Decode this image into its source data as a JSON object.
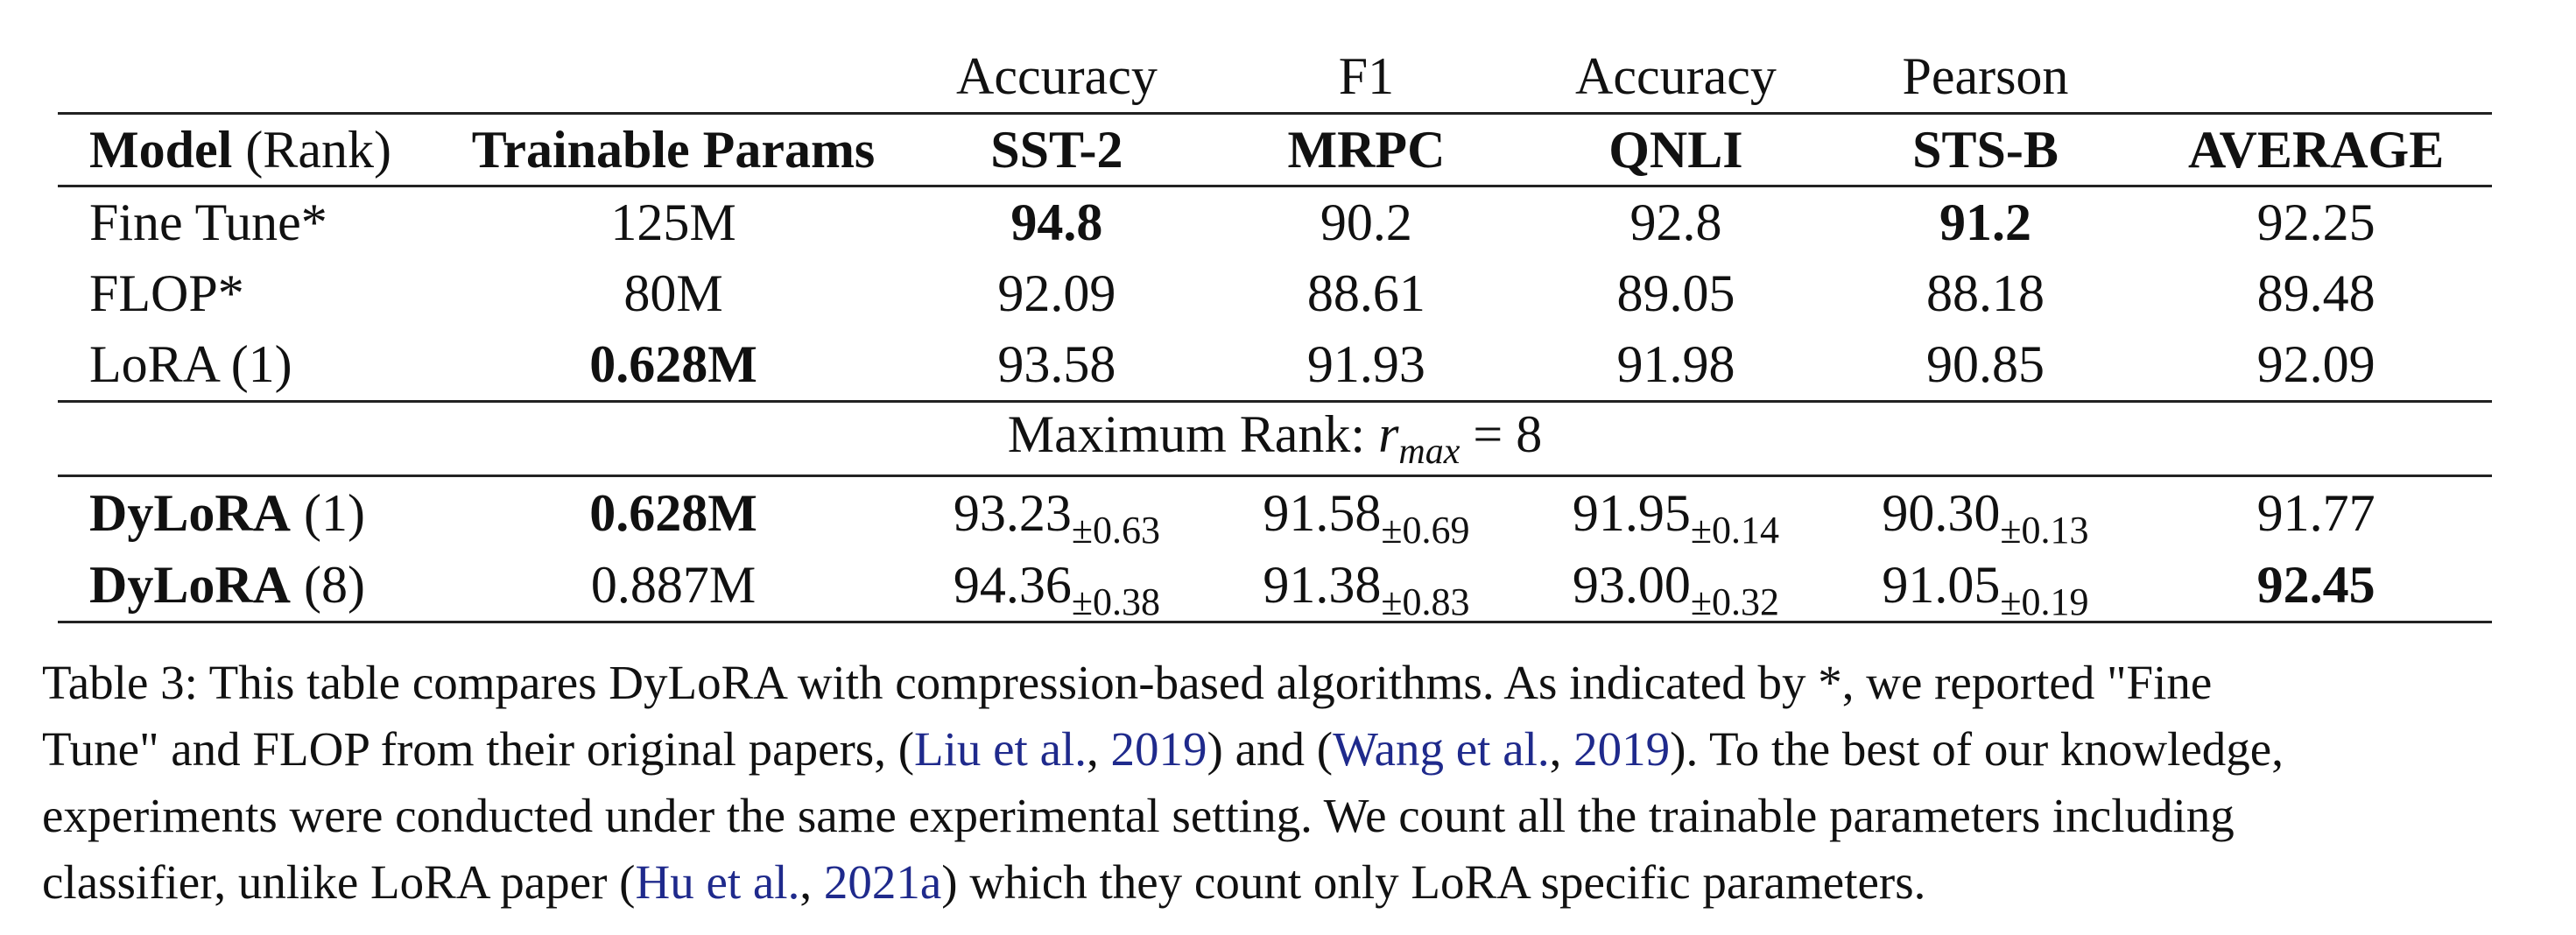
{
  "table": {
    "metric_row": [
      "",
      "",
      "Accuracy",
      "F1",
      "Accuracy",
      "Pearson",
      ""
    ],
    "header": {
      "model_bold": "Model",
      "model_rest": " (Rank)",
      "params": "Trainable Params",
      "sst2": "SST-2",
      "mrpc": "MRPC",
      "qnli": "QNLI",
      "stsb": "STS-B",
      "average": "AVERAGE"
    },
    "rows": [
      {
        "model": "Fine Tune*",
        "params": "125M",
        "sst2": "94.8",
        "mrpc": "90.2",
        "qnli": "92.8",
        "stsb": "91.2",
        "average": "92.25"
      },
      {
        "model": "FLOP*",
        "params": "80M",
        "sst2": "92.09",
        "mrpc": "88.61",
        "qnli": "89.05",
        "stsb": "88.18",
        "average": "89.48"
      },
      {
        "model": "LoRA (1)",
        "params": "0.628M",
        "sst2": "93.58",
        "mrpc": "91.93",
        "qnli": "91.98",
        "stsb": "90.85",
        "average": "92.09"
      }
    ],
    "rank_row": {
      "prefix": "Maximum Rank: ",
      "var": "r",
      "sub": "max",
      "suffix": " = 8"
    },
    "dylora_rows": [
      {
        "name": "DyLoRA",
        "rank": " (1)",
        "params": "0.628M",
        "sst2": "93.23",
        "sst2_std": "±0.63",
        "mrpc": "91.58",
        "mrpc_std": "±0.69",
        "qnli": "91.95",
        "qnli_std": "±0.14",
        "stsb": "90.30",
        "stsb_std": "±0.13",
        "average": "91.77"
      },
      {
        "name": "DyLoRA",
        "rank": " (8)",
        "params": "0.887M",
        "sst2": "94.36",
        "sst2_std": "±0.38",
        "mrpc": "91.38",
        "mrpc_std": "±0.83",
        "qnli": "93.00",
        "qnli_std": "±0.32",
        "stsb": "91.05",
        "stsb_std": "±0.19",
        "average": "92.45"
      }
    ]
  },
  "caption": {
    "line1": "Table 3: This table compares DyLoRA with compression-based algorithms. As indicated by *, we reported \"Fine",
    "line2_a": "Tune\" and FLOP from their original papers, (",
    "line2_cite1_name": "Liu et al.",
    "line2_b": ", ",
    "line2_cite1_year": "2019",
    "line2_c": ") and (",
    "line2_cite2_name": "Wang et al.",
    "line2_d": ", ",
    "line2_cite2_year": "2019",
    "line2_e": "). To the best of our knowledge,",
    "line3": "experiments were conducted under the same experimental setting. We count all the trainable parameters including",
    "line4_a": "classifier, unlike LoRA paper (",
    "line4_cite_name": "Hu et al.",
    "line4_b": ", ",
    "line4_cite_year": "2021a",
    "line4_c": ") which they count only LoRA specific parameters."
  },
  "colors": {
    "text": "#111111",
    "citation_link": "#1f2a8c",
    "rule": "#222222"
  }
}
